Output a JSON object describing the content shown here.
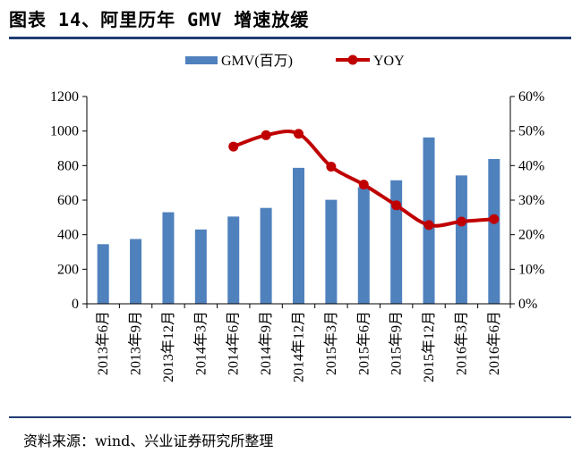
{
  "title": "图表 14、阿里历年 GMV 增速放缓",
  "source": "资料来源：wind、兴业证券研究所整理",
  "chart_data": {
    "type": "bar",
    "categories": [
      "2013年6月",
      "2013年9月",
      "2013年12月",
      "2014年3月",
      "2014年6月",
      "2014年9月",
      "2014年12月",
      "2015年3月",
      "2015年6月",
      "2015年9月",
      "2015年12月",
      "2016年3月",
      "2016年6月"
    ],
    "series": [
      {
        "name": "GMV(百万)",
        "type": "bar",
        "axis": "left",
        "color": "#4f81bd",
        "values": [
          345,
          375,
          530,
          430,
          505,
          555,
          787,
          602,
          675,
          715,
          963,
          743,
          838
        ]
      },
      {
        "name": "YOY",
        "type": "line",
        "axis": "right",
        "color": "#c00000",
        "values": [
          null,
          null,
          null,
          null,
          45.5,
          48.8,
          49.2,
          39.7,
          34.5,
          28.5,
          22.8,
          23.8,
          24.5
        ]
      }
    ],
    "ylim_left": [
      0,
      1200
    ],
    "yticks_left": [
      "0",
      "200",
      "400",
      "600",
      "800",
      "1000",
      "1200"
    ],
    "ylim_right": [
      0,
      60
    ],
    "yticks_right": [
      "0%",
      "10%",
      "20%",
      "30%",
      "40%",
      "50%",
      "60%"
    ],
    "legend_position": "top-center",
    "grid": false
  }
}
